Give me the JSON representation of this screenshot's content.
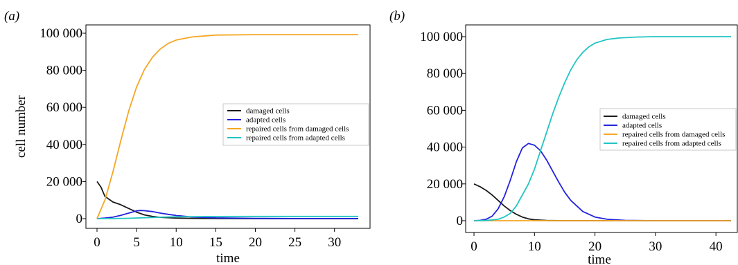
{
  "chart_data": [
    {
      "panel_label": "(a)",
      "type": "line",
      "xlabel": "time",
      "ylabel": "cell number",
      "xlim": [
        0,
        33
      ],
      "ylim": [
        0,
        100000
      ],
      "xticks": [
        0,
        5,
        10,
        15,
        20,
        25,
        30
      ],
      "yticks": [
        0,
        20000,
        40000,
        60000,
        80000,
        100000
      ],
      "ytick_labels": [
        "0",
        "20 000",
        "40 000",
        "60 000",
        "80 000",
        "100 000"
      ],
      "legend_position": "center-right",
      "colors": {
        "damaged": "#1a1a1a",
        "adapted": "#2222dd",
        "repaired_damaged": "#f5a623",
        "repaired_adapted": "#22c4c4"
      },
      "series": [
        {
          "name": "damaged cells",
          "color": "#1a1a1a",
          "x": [
            0,
            0.5,
            1,
            2,
            3,
            4,
            5,
            6,
            7,
            8,
            10,
            12,
            15,
            20,
            25,
            33
          ],
          "y": [
            20000,
            17000,
            12000,
            9000,
            7500,
            5500,
            3500,
            2000,
            1200,
            700,
            300,
            150,
            50,
            10,
            0,
            0
          ]
        },
        {
          "name": "adapted cells",
          "color": "#2222dd",
          "x": [
            0,
            1,
            2,
            3,
            4,
            5,
            5.5,
            6,
            7,
            8,
            9,
            10,
            12,
            15,
            20,
            25,
            33
          ],
          "y": [
            0,
            300,
            800,
            1800,
            3000,
            4200,
            4400,
            4300,
            3800,
            3000,
            2300,
            1700,
            900,
            400,
            150,
            50,
            20
          ]
        },
        {
          "name": "repaired cells from damaged cells",
          "color": "#f5a623",
          "x": [
            0,
            1,
            2,
            3,
            4,
            5,
            6,
            7,
            8,
            9,
            10,
            12,
            15,
            20,
            25,
            33
          ],
          "y": [
            0,
            10000,
            25000,
            42000,
            58000,
            71000,
            80500,
            87000,
            91500,
            94500,
            96300,
            98000,
            99000,
            99200,
            99200,
            99200
          ]
        },
        {
          "name": "repaired cells from adapted cells",
          "color": "#22c4c4",
          "x": [
            0,
            2,
            4,
            6,
            8,
            10,
            12,
            15,
            20,
            25,
            33
          ],
          "y": [
            0,
            50,
            200,
            500,
            800,
            1000,
            1100,
            1150,
            1200,
            1200,
            1200
          ]
        }
      ]
    },
    {
      "panel_label": "(b)",
      "type": "line",
      "xlabel": "time",
      "ylabel": "",
      "xlim": [
        0,
        42.5
      ],
      "ylim": [
        0,
        100000
      ],
      "xticks": [
        0,
        10,
        20,
        30,
        40
      ],
      "yticks": [
        0,
        20000,
        40000,
        60000,
        80000,
        100000
      ],
      "ytick_labels": [
        "0",
        "20 000",
        "40 000",
        "60 000",
        "80 000",
        "100 000"
      ],
      "legend_position": "center-right",
      "colors": {
        "damaged": "#1a1a1a",
        "adapted": "#2222dd",
        "repaired_damaged": "#f5a623",
        "repaired_adapted": "#22c4c4"
      },
      "series": [
        {
          "name": "damaged cells",
          "color": "#1a1a1a",
          "x": [
            0,
            1,
            2,
            3,
            4,
            5,
            6,
            7,
            8,
            9,
            10,
            12,
            15,
            20,
            42.5
          ],
          "y": [
            20000,
            18500,
            16500,
            14000,
            11000,
            8000,
            5500,
            3500,
            2000,
            1000,
            500,
            100,
            0,
            0,
            0
          ]
        },
        {
          "name": "adapted cells",
          "color": "#2222dd",
          "x": [
            0,
            1,
            2,
            3,
            4,
            5,
            6,
            7,
            8,
            9,
            10,
            11,
            12,
            13,
            14,
            15,
            16,
            18,
            20,
            22,
            25,
            30,
            35,
            42.5
          ],
          "y": [
            0,
            200,
            800,
            2500,
            6500,
            13000,
            22000,
            32000,
            39500,
            42000,
            41000,
            38000,
            33000,
            27000,
            21000,
            15500,
            11000,
            5000,
            2000,
            800,
            200,
            0,
            0,
            0
          ]
        },
        {
          "name": "repaired cells from damaged cells",
          "color": "#f5a623",
          "x": [
            0,
            10,
            20,
            30,
            42.5
          ],
          "y": [
            0,
            0,
            0,
            0,
            0
          ]
        },
        {
          "name": "repaired cells from adapted cells",
          "color": "#22c4c4",
          "x": [
            0,
            2,
            4,
            5,
            6,
            7,
            8,
            9,
            10,
            11,
            12,
            13,
            14,
            15,
            16,
            17,
            18,
            19,
            20,
            22,
            24,
            27,
            30,
            35,
            42.5
          ],
          "y": [
            0,
            100,
            800,
            2000,
            4000,
            8000,
            14000,
            20000,
            28000,
            38000,
            48000,
            58000,
            67000,
            75000,
            82000,
            87500,
            91500,
            94500,
            96500,
            98500,
            99300,
            99800,
            100000,
            100000,
            100000
          ]
        }
      ]
    }
  ]
}
